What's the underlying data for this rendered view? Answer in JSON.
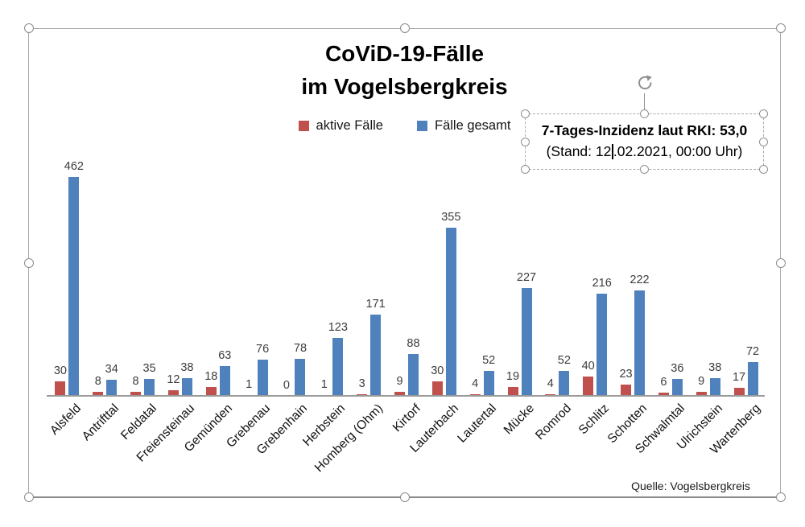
{
  "title": {
    "line1": "CoViD-19-Fälle",
    "line2": "im Vogelsbergkreis"
  },
  "info_box": {
    "line1": "7-Tages-Inzidenz laut RKI: 53,0",
    "line2_before_caret": "(Stand: 12",
    "line2_after_caret": ".02.2021, 00:00 Uhr)"
  },
  "source": "Quelle: Vogelsbergkreis",
  "icons": {
    "rotate_handle": "circular-arrow-rotate-icon",
    "legend_markers": "square-swatch"
  },
  "colors": {
    "active_series": "#c0504d",
    "total_series": "#4f81bd",
    "selection_chrome": "#8f8f8f",
    "axis_line": "#9a9a9a"
  },
  "chart_data": {
    "type": "bar",
    "title": "CoViD-19-Fälle im Vogelsbergkreis",
    "categories": [
      "Alsfeld",
      "Antrifttal",
      "Feldatal",
      "Freiensteinau",
      "Gemünden",
      "Grebenau",
      "Grebenhain",
      "Herbstein",
      "Homberg (Ohm)",
      "Kirtorf",
      "Lauterbach",
      "Lautertal",
      "Mücke",
      "Romrod",
      "Schlitz",
      "Schotten",
      "Schwalmtal",
      "Ulrichstein",
      "Wartenberg"
    ],
    "series": [
      {
        "name": "aktive Fälle",
        "color": "#c0504d",
        "values": [
          30,
          8,
          8,
          12,
          18,
          1,
          0,
          1,
          3,
          9,
          30,
          4,
          19,
          4,
          40,
          23,
          6,
          9,
          17
        ]
      },
      {
        "name": "Fälle gesamt",
        "color": "#4f81bd",
        "values": [
          462,
          34,
          35,
          38,
          63,
          76,
          78,
          123,
          171,
          88,
          355,
          52,
          227,
          52,
          216,
          222,
          36,
          38,
          72
        ]
      }
    ],
    "ylim": [
      0,
      462
    ],
    "grid": false,
    "y_axis_visible": false,
    "legend_position": "top",
    "data_labels": "outside-end",
    "xlabel": "",
    "ylabel": ""
  }
}
